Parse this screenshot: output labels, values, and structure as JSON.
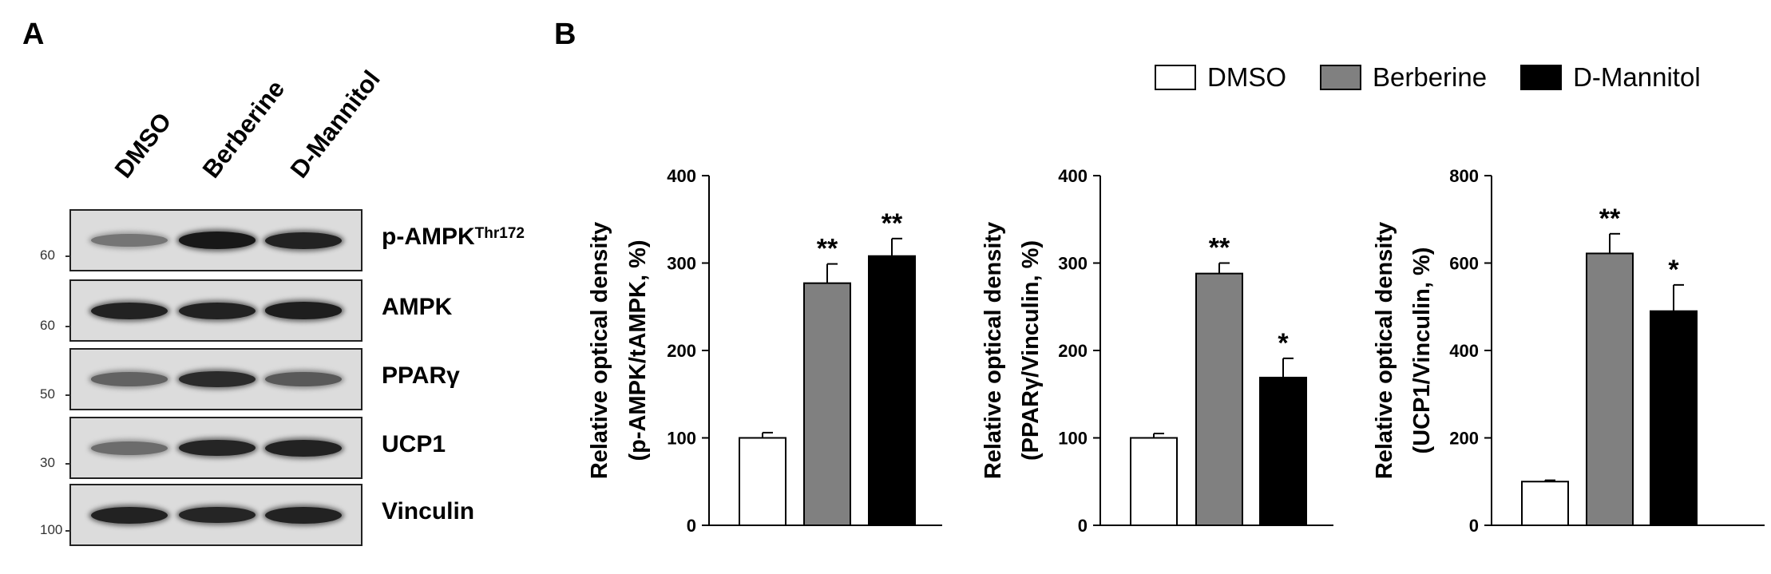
{
  "panels": {
    "a": "A",
    "b": "B"
  },
  "blot": {
    "lanes": [
      "DMSO",
      "Berberine",
      "D-Mannitol"
    ],
    "rows": [
      {
        "label": "p-AMPK",
        "sup": "Thr172",
        "mw": "60",
        "intensity": [
          0.45,
          0.95,
          0.9
        ]
      },
      {
        "label": "AMPK",
        "sup": "",
        "mw": "60",
        "intensity": [
          0.9,
          0.9,
          0.92
        ]
      },
      {
        "label": "PPARγ",
        "sup": "",
        "mw": "50",
        "intensity": [
          0.55,
          0.85,
          0.6
        ]
      },
      {
        "label": "UCP1",
        "sup": "",
        "mw": "30",
        "intensity": [
          0.5,
          0.88,
          0.9
        ]
      },
      {
        "label": "Vinculin",
        "sup": "",
        "mw": "100",
        "intensity": [
          0.9,
          0.88,
          0.9
        ]
      }
    ]
  },
  "legend": [
    {
      "label": "DMSO",
      "color": "#ffffff"
    },
    {
      "label": "Berberine",
      "color": "#808080"
    },
    {
      "label": "D-Mannitol",
      "color": "#000000"
    }
  ],
  "chart_data": [
    {
      "type": "bar",
      "categories": [
        "DMSO",
        "Berberine",
        "D-Mannitol"
      ],
      "values": [
        100,
        277,
        308
      ],
      "errors": [
        6,
        22,
        20
      ],
      "significance": [
        "",
        "**",
        "**"
      ],
      "colors": [
        "#ffffff",
        "#808080",
        "#000000"
      ],
      "ylabel_lines": [
        "Relative optical density",
        "(p-AMPK/tAMPK, %)"
      ],
      "ylim": [
        0,
        400
      ],
      "yticks": [
        0,
        100,
        200,
        300,
        400
      ]
    },
    {
      "type": "bar",
      "categories": [
        "DMSO",
        "Berberine",
        "D-Mannitol"
      ],
      "values": [
        100,
        288,
        169
      ],
      "errors": [
        5,
        12,
        22
      ],
      "significance": [
        "",
        "**",
        "*"
      ],
      "colors": [
        "#ffffff",
        "#808080",
        "#000000"
      ],
      "ylabel_lines": [
        "Relative optical density",
        "(PPARγ/Vinculin, %)"
      ],
      "ylim": [
        0,
        400
      ],
      "yticks": [
        0,
        100,
        200,
        300,
        400
      ]
    },
    {
      "type": "bar",
      "categories": [
        "DMSO",
        "Berberine",
        "D-Mannitol"
      ],
      "values": [
        100,
        622,
        490
      ],
      "errors": [
        3,
        45,
        60
      ],
      "significance": [
        "",
        "**",
        "*"
      ],
      "colors": [
        "#ffffff",
        "#808080",
        "#000000"
      ],
      "ylabel_lines": [
        "Relative optical density",
        "(UCP1/Vinculin, %)"
      ],
      "ylim": [
        0,
        800
      ],
      "yticks": [
        0,
        200,
        400,
        600,
        800
      ]
    }
  ]
}
